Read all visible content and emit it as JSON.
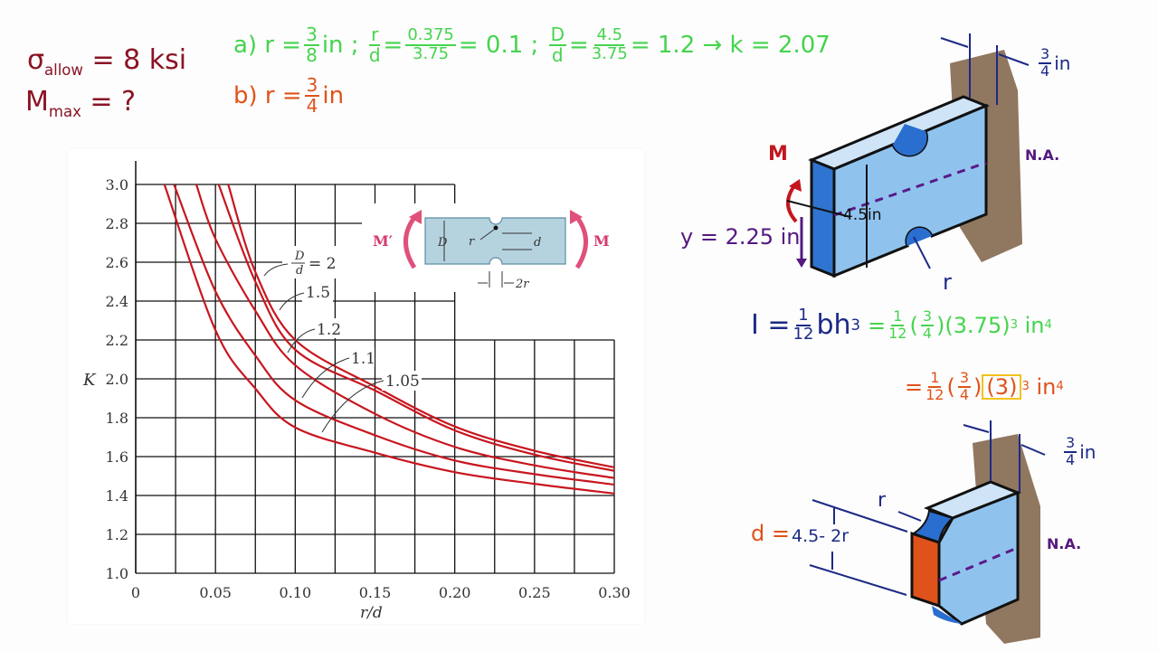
{
  "given": {
    "sigma_symbol": "σ",
    "sigma_sub": "allow",
    "sigma_value": "= 8 ksi",
    "m_symbol": "M",
    "m_sub": "max",
    "m_value": "= ?"
  },
  "part_a": {
    "label": "a)",
    "r_eq": "r =",
    "r_num": "3",
    "r_den": "8",
    "r_unit": "in",
    "sep1": ";",
    "rd_num": "r",
    "rd_den": "d",
    "eq1": "=",
    "rd_val_num": "0.375",
    "rd_val_den": "3.75",
    "rd_result": "= 0.1",
    "sep2": ";",
    "Dd_num": "D",
    "Dd_den": "d",
    "eq2": "=",
    "Dd_val_num": "4.5",
    "Dd_val_den": "3.75",
    "Dd_result": "= 1.2 → k = 2.07"
  },
  "part_b": {
    "label": "b)",
    "r_eq": "r =",
    "r_num": "3",
    "r_den": "4",
    "r_unit": "in"
  },
  "inertia": {
    "lhs": "I =",
    "one": "1",
    "twelve": "12",
    "bh": "bh",
    "cube": "3",
    "green_eq": "=",
    "green_one": "1",
    "green_twelve": "12",
    "green_b_num": "3",
    "green_b_den": "4",
    "green_h": "(3.75)",
    "green_exp": "3",
    "green_unit": "in",
    "green_unit_exp": "4",
    "orange_eq": "=",
    "orange_one": "1",
    "orange_twelve": "12",
    "orange_b_num": "3",
    "orange_b_den": "4",
    "orange_h": "3",
    "orange_exp": "3",
    "orange_unit": "in",
    "orange_unit_exp": "4"
  },
  "top_drawing": {
    "moment": "M",
    "na": "N.A.",
    "thickness_num": "3",
    "thickness_den": "4",
    "thickness_unit": "in",
    "y_label": "y = 2.25 in",
    "height_label": "4.5in",
    "radius": "r"
  },
  "bottom_drawing": {
    "d_label": "d =",
    "d_expr": "4.5- 2r",
    "radius": "r",
    "thickness_num": "3",
    "thickness_den": "4",
    "thickness_unit": "in",
    "na": "N.A."
  },
  "colors": {
    "curve": "#c8161f",
    "inset_arrow": "#e0507a",
    "specimen": "#b5d3df",
    "part_a": "#45d44e",
    "part_b": "#e0521b",
    "block": "#8fc3ee",
    "wall": "#6b4a2b"
  },
  "chart_data": {
    "type": "line",
    "xlabel": "r/d",
    "ylabel": "K",
    "xlim": [
      0,
      0.3
    ],
    "ylim": [
      1.0,
      3.0
    ],
    "xticks": [
      "0",
      "0.05",
      "0.10",
      "0.15",
      "0.20",
      "0.25",
      "0.30"
    ],
    "yticks": [
      "1.0",
      "1.2",
      "1.4",
      "1.6",
      "1.8",
      "2.0",
      "2.2",
      "2.4",
      "2.6",
      "2.8",
      "3.0"
    ],
    "grid": true,
    "series_label_prefix": "D",
    "series_label_prefix_den": "d",
    "series_label_eq": "= 2",
    "series": [
      {
        "name": "2",
        "label": "2",
        "points": [
          [
            0.058,
            3.0
          ],
          [
            0.075,
            2.55
          ],
          [
            0.1,
            2.2
          ],
          [
            0.15,
            1.96
          ],
          [
            0.2,
            1.755
          ],
          [
            0.25,
            1.63
          ],
          [
            0.3,
            1.545
          ]
        ]
      },
      {
        "name": "1.5",
        "label": "1.5",
        "points": [
          [
            0.052,
            3.0
          ],
          [
            0.075,
            2.5
          ],
          [
            0.1,
            2.15
          ],
          [
            0.15,
            1.94
          ],
          [
            0.2,
            1.735
          ],
          [
            0.25,
            1.61
          ],
          [
            0.3,
            1.527
          ]
        ]
      },
      {
        "name": "1.2",
        "label": "1.2",
        "points": [
          [
            0.038,
            3.0
          ],
          [
            0.05,
            2.72
          ],
          [
            0.075,
            2.35
          ],
          [
            0.1,
            2.07
          ],
          [
            0.15,
            1.82
          ],
          [
            0.2,
            1.65
          ],
          [
            0.25,
            1.555
          ],
          [
            0.3,
            1.49
          ]
        ]
      },
      {
        "name": "1.1",
        "label": "1.1",
        "points": [
          [
            0.024,
            3.0
          ],
          [
            0.05,
            2.45
          ],
          [
            0.075,
            2.12
          ],
          [
            0.1,
            1.89
          ],
          [
            0.15,
            1.71
          ],
          [
            0.2,
            1.58
          ],
          [
            0.25,
            1.51
          ],
          [
            0.3,
            1.456
          ]
        ]
      },
      {
        "name": "1.05",
        "label": "1.05",
        "points": [
          [
            0.018,
            3.0
          ],
          [
            0.05,
            2.25
          ],
          [
            0.075,
            1.95
          ],
          [
            0.1,
            1.75
          ],
          [
            0.15,
            1.62
          ],
          [
            0.2,
            1.52
          ],
          [
            0.25,
            1.46
          ],
          [
            0.3,
            1.41
          ]
        ]
      }
    ],
    "inset": {
      "moment_left": "M′",
      "moment_right": "M",
      "D": "D",
      "r": "r",
      "d": "d",
      "notch_width": "2r"
    }
  }
}
